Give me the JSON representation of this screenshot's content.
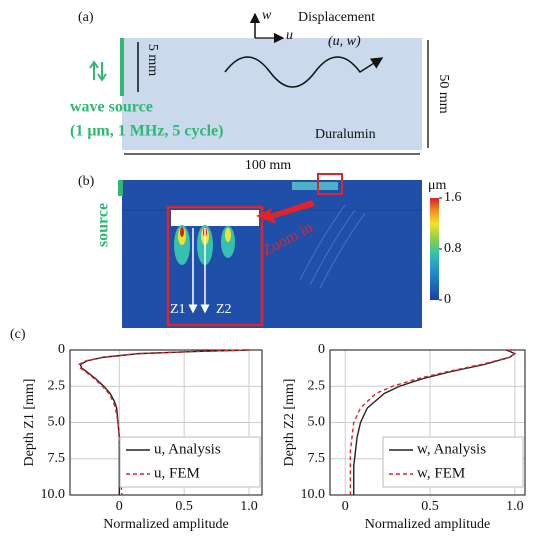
{
  "panel_a": {
    "label": "(a)",
    "displacement": "Displacement",
    "components": "(u, w)",
    "axis_u": "u",
    "axis_w": "w",
    "source_height": "5 mm",
    "source_title": "wave source",
    "source_params": "(1 μm, 1 MHz, 5 cycle)",
    "material": "Duralumin",
    "height": "50 mm",
    "width": "100 mm"
  },
  "panel_b": {
    "label": "(b)",
    "source": "source",
    "zoom": "Zoom in",
    "z1": "Z1",
    "z2": "Z2",
    "colorbar_unit": "μm",
    "colorbar_range": [
      0,
      1.6
    ],
    "colorbar_ticks": [
      1.6,
      0.8,
      0
    ]
  },
  "panel_c": {
    "label": "(c)"
  },
  "chart_data": [
    {
      "type": "line",
      "x_label": "Normalized amplitude",
      "y_label": "Depth Z1 [mm]",
      "y": [
        0,
        0.1,
        0.25,
        0.5,
        0.75,
        1,
        1.25,
        1.5,
        2,
        2.5,
        3,
        3.5,
        4,
        5,
        6,
        7,
        8,
        9,
        10
      ],
      "series": [
        {
          "name": "u, Analysis",
          "color": "#222222",
          "dash": false,
          "values": [
            1.0,
            0.6,
            0.15,
            -0.12,
            -0.25,
            -0.3,
            -0.29,
            -0.25,
            -0.18,
            -0.12,
            -0.07,
            -0.04,
            -0.02,
            -0.01,
            0,
            0,
            0,
            0,
            0
          ]
        },
        {
          "name": "u, FEM",
          "color": "#e0242b",
          "dash": true,
          "values": [
            1.0,
            0.58,
            0.14,
            -0.13,
            -0.26,
            -0.31,
            -0.3,
            -0.26,
            -0.19,
            -0.13,
            -0.08,
            -0.05,
            -0.03,
            -0.01,
            0,
            0.01,
            0.01,
            0.01,
            0.02
          ]
        }
      ],
      "xlim": [
        -0.38,
        1.1
      ],
      "xticks": [
        0,
        0.5,
        {
          "value": 1,
          "label": "1.0"
        }
      ],
      "ylim": [
        0,
        10
      ],
      "yticks": [
        0,
        2.5,
        {
          "value": 5,
          "label": "5.0"
        },
        7.5,
        {
          "value": 10,
          "label": "10.0"
        }
      ],
      "y_inverted": true,
      "grid": true,
      "legend": "lower right"
    },
    {
      "type": "line",
      "x_label": "Normalized amplitude",
      "y_label": "Depth Z2 [mm]",
      "y": [
        0,
        0.25,
        0.5,
        1,
        1.5,
        2,
        2.5,
        3,
        4,
        5,
        6,
        7,
        8,
        9,
        10
      ],
      "series": [
        {
          "name": "w, Analysis",
          "color": "#222222",
          "dash": false,
          "values": [
            0.95,
            1.0,
            0.97,
            0.82,
            0.62,
            0.45,
            0.32,
            0.23,
            0.13,
            0.09,
            0.07,
            0.06,
            0.05,
            0.05,
            0.05
          ]
        },
        {
          "name": "w, FEM",
          "color": "#e0242b",
          "dash": true,
          "values": [
            0.96,
            1.0,
            0.97,
            0.8,
            0.6,
            0.42,
            0.28,
            0.18,
            0.09,
            0.05,
            0.04,
            0.03,
            0.03,
            0.03,
            0.03
          ]
        }
      ],
      "xlim": [
        -0.09,
        1.06
      ],
      "xticks": [
        0,
        0.5,
        {
          "value": 1,
          "label": "1.0"
        }
      ],
      "ylim": [
        0,
        10
      ],
      "yticks": [
        0,
        2.5,
        {
          "value": 5,
          "label": "5.0"
        },
        7.5,
        {
          "value": 10,
          "label": "10.0"
        }
      ],
      "y_inverted": true,
      "grid": true,
      "legend": "lower right"
    }
  ]
}
